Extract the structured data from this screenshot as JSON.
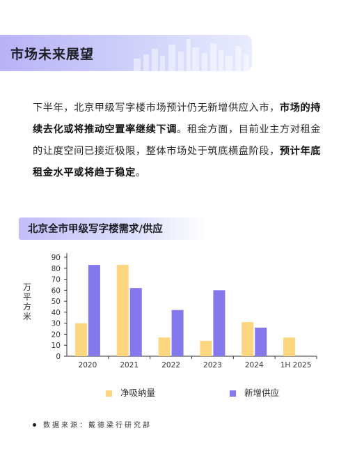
{
  "header": {
    "title": "市场未来展望"
  },
  "paragraph": {
    "p1": "下半年，北京甲级写字楼市场预计仍无新增供应入市，",
    "b1": "市场的持续去化或将推动空置率继续下调",
    "p2": "。租金方面，目前业主方对租金的让度空间已接近极限，整体市场处于筑底横盘阶段，",
    "b2": "预计年底租金水平或将趋于稳定",
    "p3": "。"
  },
  "chart_data": {
    "type": "bar",
    "title": "北京全市甲级写字楼需求/供应",
    "ylabel": "万平方米",
    "xlabel": "",
    "categories": [
      "2020",
      "2021",
      "2022",
      "2023",
      "2024",
      "1H 2025"
    ],
    "series": [
      {
        "name": "净吸纳量",
        "color": "#fcd77f",
        "values": [
          30,
          83,
          17,
          14,
          31,
          17
        ]
      },
      {
        "name": "新增供应",
        "color": "#8478ec",
        "values": [
          83,
          62,
          42,
          60,
          26,
          0
        ]
      }
    ],
    "ylim": [
      0,
      90
    ],
    "yticks": [
      0,
      10,
      20,
      30,
      40,
      50,
      60,
      70,
      80,
      90
    ],
    "grid": false,
    "legend_position": "bottom"
  },
  "source": {
    "text": "数据来源：戴德梁行研究部"
  }
}
